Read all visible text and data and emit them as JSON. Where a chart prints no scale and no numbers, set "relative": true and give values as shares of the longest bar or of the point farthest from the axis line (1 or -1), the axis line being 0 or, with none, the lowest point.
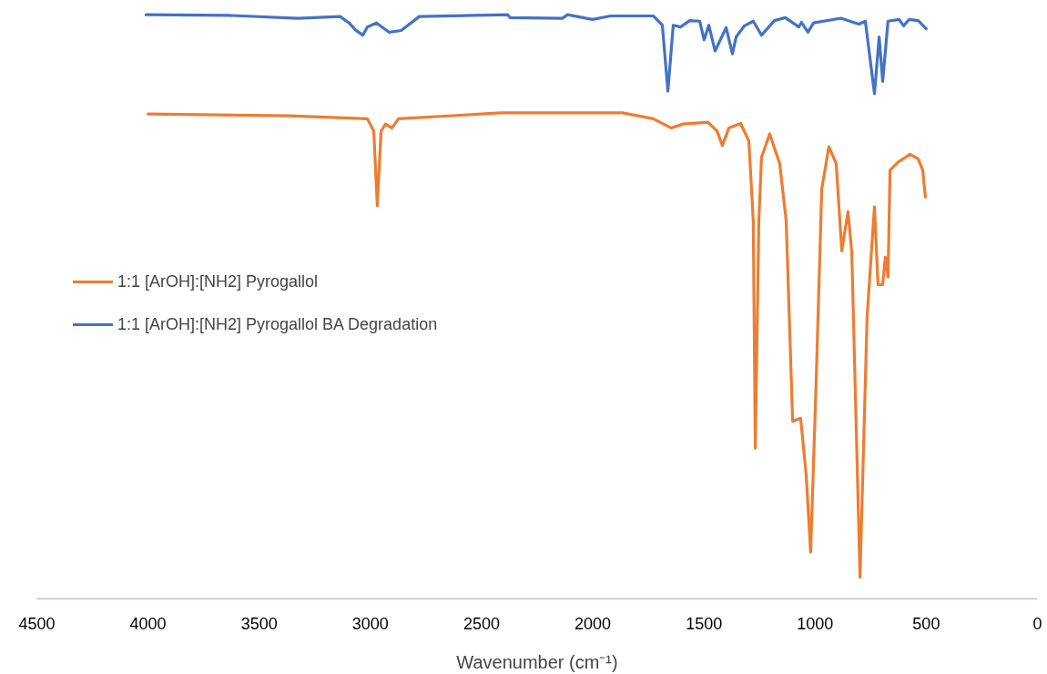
{
  "chart_data": {
    "type": "line",
    "relative": true,
    "xlabel": "Wavenumber (cm⁻¹)",
    "xlim": [
      4500,
      0
    ],
    "xticks": [
      4500,
      4000,
      3500,
      3000,
      2500,
      2000,
      1500,
      1000,
      500,
      0
    ],
    "grid": false,
    "legend": "left",
    "line_style": "solid",
    "marker": "none",
    "series": [
      {
        "name": "1:1 [ArOH]:[NH2] Pyrogallol",
        "color": "#ed7d31",
        "x": [
          4000,
          3366,
          3014,
          2985,
          2969,
          2952,
          2932,
          2903,
          2874,
          2412,
          2002,
          1867,
          1728,
          1646,
          1593,
          1482,
          1441,
          1417,
          1388,
          1335,
          1298,
          1278,
          1269,
          1253,
          1241,
          1204,
          1159,
          1130,
          1101,
          1065,
          1040,
          1020,
          995,
          970,
          938,
          905,
          880,
          852,
          835,
          798,
          766,
          733,
          717,
          696,
          684,
          672,
          663,
          626,
          573,
          536,
          516,
          504
        ],
        "values": [
          0.83,
          0.827,
          0.822,
          0.801,
          0.673,
          0.801,
          0.813,
          0.806,
          0.822,
          0.832,
          0.832,
          0.832,
          0.822,
          0.806,
          0.813,
          0.816,
          0.801,
          0.776,
          0.806,
          0.814,
          0.784,
          0.647,
          0.258,
          0.647,
          0.756,
          0.796,
          0.745,
          0.647,
          0.304,
          0.309,
          0.212,
          0.08,
          0.375,
          0.702,
          0.774,
          0.745,
          0.596,
          0.663,
          0.593,
          0.037,
          0.484,
          0.671,
          0.538,
          0.538,
          0.585,
          0.551,
          0.734,
          0.748,
          0.761,
          0.753,
          0.734,
          0.688
        ]
      },
      {
        "name": "1:1 [ArOH]:[NH2] Pyrogallol BA Degradation",
        "color": "#4472c4",
        "x": [
          4009,
          3640,
          3325,
          3136,
          3096,
          3067,
          3034,
          3014,
          2973,
          2915,
          2862,
          2780,
          2383,
          2371,
          2137,
          2113,
          2002,
          1920,
          1728,
          1687,
          1662,
          1638,
          1605,
          1564,
          1519,
          1499,
          1478,
          1450,
          1400,
          1372,
          1355,
          1318,
          1278,
          1241,
          1183,
          1134,
          1073,
          1061,
          1032,
          1007,
          884,
          803,
          774,
          733,
          712,
          696,
          672,
          622,
          602,
          577,
          536,
          500
        ],
        "values": [
          1.0,
          0.999,
          0.994,
          0.997,
          0.986,
          0.974,
          0.965,
          0.979,
          0.986,
          0.97,
          0.973,
          0.997,
          1.0,
          0.995,
          0.994,
          1.0,
          0.992,
          0.998,
          0.998,
          0.982,
          0.869,
          0.982,
          0.979,
          0.99,
          0.989,
          0.957,
          0.982,
          0.938,
          0.978,
          0.933,
          0.962,
          0.981,
          0.989,
          0.965,
          0.99,
          0.995,
          0.979,
          0.987,
          0.97,
          0.986,
          0.994,
          0.984,
          0.989,
          0.865,
          0.962,
          0.886,
          0.989,
          0.992,
          0.981,
          0.992,
          0.99,
          0.976
        ]
      }
    ]
  }
}
